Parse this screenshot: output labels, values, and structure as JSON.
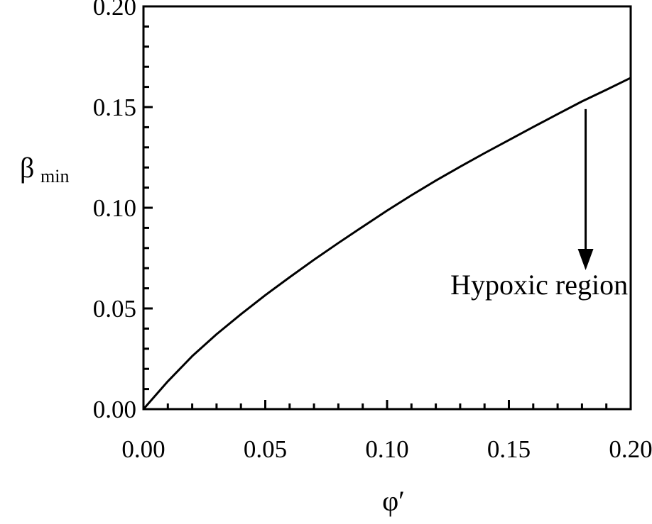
{
  "chart_data": {
    "type": "line",
    "title": "",
    "xlabel": "φ′",
    "ylabel": "β",
    "ylabel_subscript": "min",
    "xlim": [
      0.0,
      0.2
    ],
    "ylim": [
      0.0,
      0.2
    ],
    "x_ticks": [
      "0.00",
      "0.05",
      "0.10",
      "0.15",
      "0.20"
    ],
    "y_ticks": [
      "0.00",
      "0.05",
      "0.10",
      "0.15",
      "0.20"
    ],
    "grid": false,
    "series": [
      {
        "x": [
          0.0,
          0.01,
          0.02,
          0.03,
          0.04,
          0.05,
          0.06,
          0.07,
          0.08,
          0.09,
          0.1,
          0.11,
          0.12,
          0.13,
          0.14,
          0.15,
          0.16,
          0.17,
          0.18,
          0.19,
          0.2
        ],
        "values": [
          0.0,
          0.0138,
          0.0263,
          0.0372,
          0.0471,
          0.0566,
          0.0655,
          0.0742,
          0.0825,
          0.0906,
          0.0986,
          0.1062,
          0.1135,
          0.1204,
          0.1271,
          0.1336,
          0.1401,
          0.1465,
          0.1528,
          0.1586,
          0.1645
        ]
      }
    ],
    "annotations": [
      {
        "text": "Hypoxic region",
        "x": 0.126,
        "y": 0.057
      }
    ],
    "arrow": {
      "x": 0.1815,
      "y_start": 0.149,
      "y_end": 0.069
    }
  }
}
